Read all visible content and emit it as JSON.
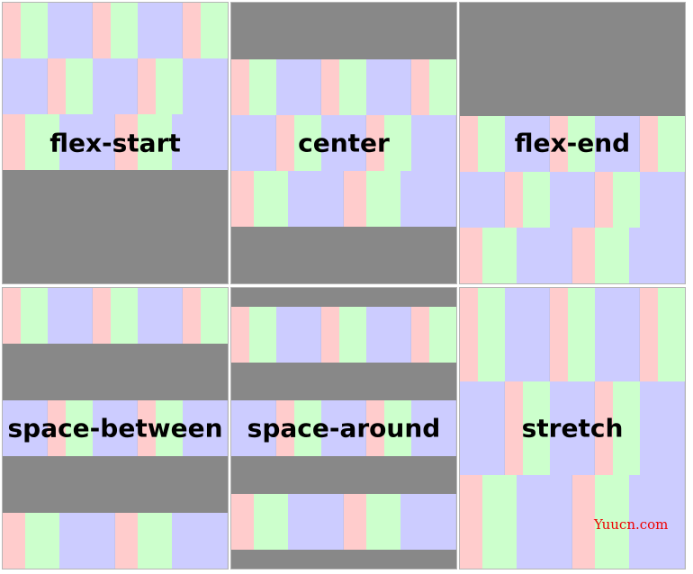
{
  "panels": [
    {
      "label": "flex-start"
    },
    {
      "label": "center"
    },
    {
      "label": "flex-end"
    },
    {
      "label": "space-between"
    },
    {
      "label": "space-around"
    },
    {
      "label": "stretch"
    }
  ],
  "watermark": "Yuucn.com"
}
